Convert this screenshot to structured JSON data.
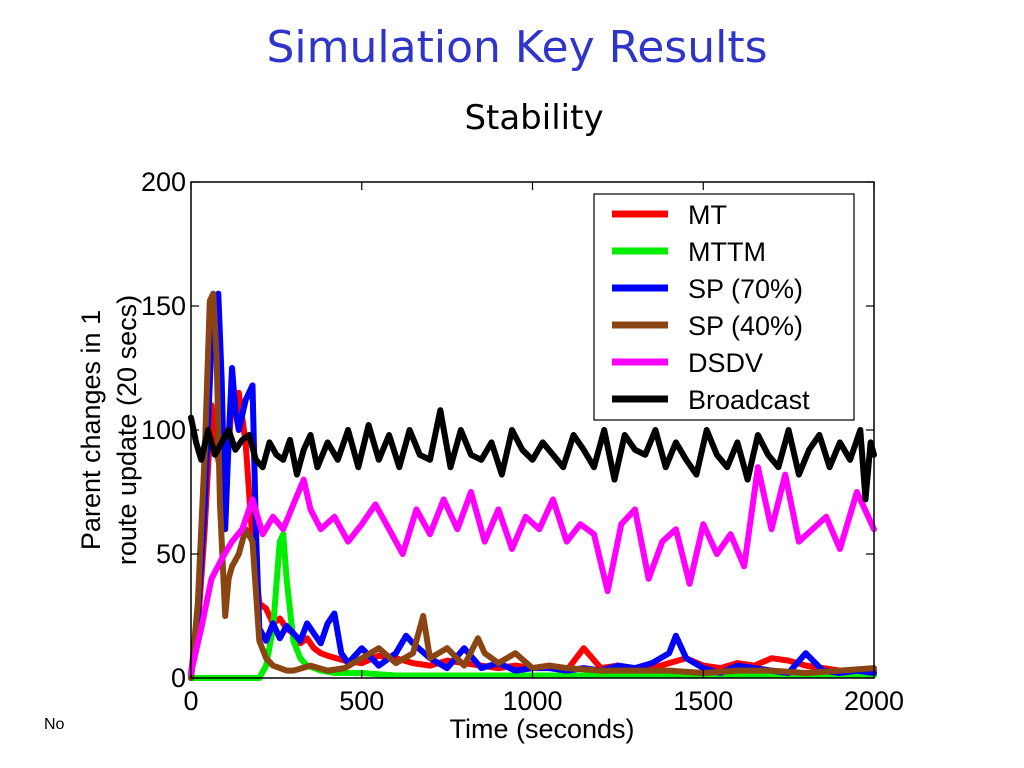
{
  "slide": {
    "title": "Simulation Key Results",
    "subtitle": "Stability",
    "footer": "No"
  },
  "chart_data": {
    "type": "line",
    "xlabel": "Time (seconds)",
    "ylabel": [
      "Parent changes in 1",
      "route update (20 secs)"
    ],
    "xlim": [
      0,
      2000
    ],
    "ylim": [
      0,
      200
    ],
    "xticks": [
      0,
      500,
      1000,
      1500,
      2000
    ],
    "yticks": [
      0,
      50,
      100,
      150,
      200
    ],
    "grid": false,
    "legend_position": "top-right",
    "series": [
      {
        "name": "MT",
        "color": "#ff0000",
        "x": [
          0,
          20,
          40,
          60,
          80,
          100,
          120,
          140,
          160,
          180,
          200,
          220,
          240,
          260,
          280,
          300,
          320,
          340,
          360,
          380,
          400,
          450,
          500,
          550,
          600,
          650,
          700,
          750,
          800,
          850,
          900,
          950,
          1000,
          1050,
          1100,
          1150,
          1200,
          1250,
          1300,
          1350,
          1400,
          1450,
          1500,
          1550,
          1600,
          1650,
          1700,
          1750,
          1800,
          1850,
          1900,
          1950,
          2000
        ],
        "y": [
          2,
          20,
          60,
          110,
          88,
          75,
          112,
          115,
          95,
          55,
          30,
          28,
          22,
          24,
          20,
          18,
          14,
          16,
          12,
          10,
          9,
          7,
          6,
          9,
          8,
          6,
          5,
          7,
          6,
          5,
          4,
          5,
          4,
          5,
          3,
          12,
          4,
          5,
          3,
          4,
          6,
          8,
          5,
          4,
          6,
          5,
          8,
          7,
          5,
          4,
          3,
          2,
          3
        ]
      },
      {
        "name": "MTTM",
        "color": "#00ee00",
        "x": [
          0,
          50,
          100,
          150,
          200,
          220,
          240,
          260,
          270,
          280,
          300,
          320,
          340,
          380,
          420,
          500,
          600,
          700,
          800,
          900,
          1000,
          1200,
          1400,
          1600,
          1800,
          2000
        ],
        "y": [
          0,
          0,
          0,
          0,
          0,
          5,
          20,
          55,
          58,
          40,
          15,
          8,
          5,
          3,
          2,
          2,
          1,
          1,
          1,
          1,
          1,
          1,
          1,
          1,
          1,
          1
        ]
      },
      {
        "name": "SP (70%)",
        "color": "#0000ff",
        "x": [
          0,
          20,
          40,
          60,
          70,
          80,
          90,
          100,
          110,
          120,
          130,
          140,
          160,
          180,
          190,
          200,
          220,
          240,
          260,
          280,
          300,
          320,
          340,
          360,
          380,
          400,
          420,
          440,
          460,
          500,
          550,
          600,
          630,
          650,
          700,
          750,
          800,
          850,
          900,
          950,
          1000,
          1050,
          1100,
          1150,
          1200,
          1250,
          1300,
          1350,
          1400,
          1420,
          1450,
          1500,
          1550,
          1600,
          1650,
          1700,
          1750,
          1800,
          1850,
          1900,
          1950,
          2000
        ],
        "y": [
          0,
          25,
          70,
          135,
          150,
          155,
          120,
          60,
          95,
          125,
          108,
          100,
          112,
          118,
          60,
          20,
          15,
          22,
          16,
          21,
          18,
          15,
          22,
          18,
          14,
          22,
          26,
          10,
          6,
          12,
          5,
          10,
          17,
          14,
          8,
          4,
          12,
          4,
          6,
          3,
          4,
          4,
          3,
          4,
          3,
          5,
          4,
          6,
          10,
          17,
          8,
          4,
          2,
          5,
          4,
          3,
          2,
          10,
          3,
          2,
          3,
          2
        ]
      },
      {
        "name": "SP (40%)",
        "color": "#8b4513",
        "x": [
          0,
          20,
          40,
          55,
          65,
          75,
          85,
          100,
          110,
          120,
          140,
          160,
          180,
          200,
          220,
          240,
          260,
          280,
          300,
          350,
          400,
          450,
          500,
          550,
          600,
          650,
          680,
          700,
          750,
          800,
          840,
          860,
          900,
          950,
          1000,
          1050,
          1100,
          1200,
          1300,
          1400,
          1500,
          1600,
          1700,
          1800,
          1900,
          2000
        ],
        "y": [
          0,
          30,
          90,
          152,
          155,
          130,
          70,
          25,
          40,
          45,
          50,
          60,
          55,
          15,
          8,
          5,
          4,
          3,
          3,
          5,
          3,
          4,
          8,
          12,
          6,
          10,
          25,
          8,
          12,
          5,
          16,
          10,
          6,
          10,
          4,
          5,
          4,
          3,
          3,
          3,
          2,
          3,
          3,
          2,
          3,
          4
        ]
      },
      {
        "name": "DSDV",
        "color": "#ff00ff",
        "x": [
          0,
          30,
          60,
          90,
          120,
          150,
          180,
          210,
          240,
          270,
          300,
          330,
          350,
          380,
          420,
          460,
          500,
          540,
          580,
          620,
          660,
          700,
          740,
          780,
          820,
          860,
          900,
          940,
          980,
          1020,
          1060,
          1100,
          1140,
          1180,
          1220,
          1260,
          1300,
          1340,
          1380,
          1420,
          1460,
          1500,
          1540,
          1580,
          1620,
          1660,
          1700,
          1740,
          1780,
          1820,
          1860,
          1900,
          1950,
          2000
        ],
        "y": [
          2,
          20,
          40,
          48,
          55,
          60,
          72,
          58,
          65,
          60,
          70,
          80,
          68,
          60,
          65,
          55,
          62,
          70,
          60,
          50,
          68,
          58,
          72,
          60,
          75,
          55,
          68,
          52,
          65,
          60,
          72,
          55,
          62,
          58,
          35,
          62,
          68,
          40,
          55,
          60,
          38,
          62,
          50,
          58,
          45,
          85,
          60,
          82,
          55,
          60,
          65,
          52,
          75,
          60
        ]
      },
      {
        "name": "Broadcast",
        "color": "#000000",
        "x": [
          0,
          15,
          30,
          50,
          70,
          90,
          110,
          130,
          150,
          170,
          190,
          210,
          230,
          250,
          270,
          290,
          310,
          330,
          350,
          370,
          400,
          430,
          460,
          490,
          520,
          550,
          580,
          610,
          640,
          670,
          700,
          730,
          760,
          790,
          820,
          850,
          880,
          910,
          940,
          970,
          1000,
          1030,
          1060,
          1090,
          1120,
          1150,
          1180,
          1210,
          1240,
          1270,
          1300,
          1330,
          1360,
          1390,
          1420,
          1450,
          1480,
          1510,
          1540,
          1570,
          1600,
          1630,
          1660,
          1690,
          1720,
          1750,
          1780,
          1810,
          1840,
          1870,
          1900,
          1930,
          1960,
          1975,
          1990,
          2000
        ],
        "y": [
          105,
          95,
          88,
          100,
          90,
          95,
          100,
          92,
          96,
          98,
          88,
          85,
          95,
          90,
          88,
          96,
          82,
          92,
          98,
          85,
          95,
          88,
          100,
          85,
          102,
          88,
          98,
          85,
          100,
          90,
          88,
          108,
          85,
          100,
          90,
          88,
          95,
          82,
          100,
          92,
          88,
          95,
          90,
          85,
          98,
          92,
          85,
          100,
          80,
          98,
          92,
          90,
          100,
          85,
          95,
          88,
          82,
          100,
          90,
          85,
          95,
          80,
          98,
          90,
          85,
          100,
          82,
          92,
          98,
          85,
          95,
          88,
          100,
          72,
          95,
          90
        ]
      }
    ]
  }
}
